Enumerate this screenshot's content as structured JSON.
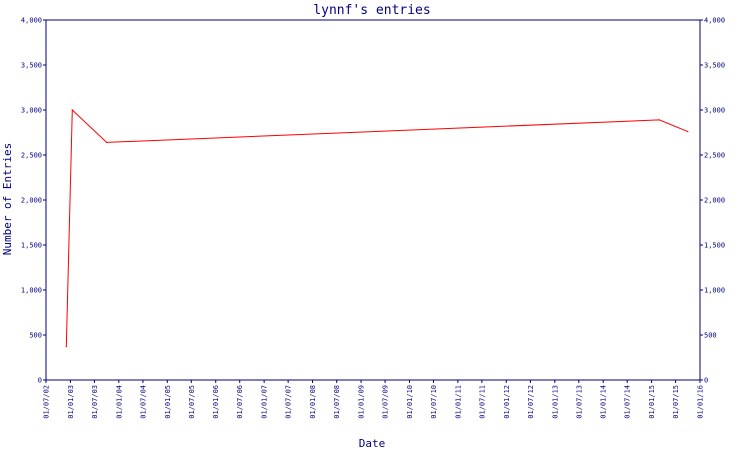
{
  "chart_data": {
    "type": "line",
    "title": "lynnf's entries",
    "xlabel": "Date",
    "ylabel": "Number of Entries",
    "ylim": [
      0,
      4000
    ],
    "y_ticks": [
      0,
      500,
      1000,
      1500,
      2000,
      2500,
      3000,
      3500,
      4000
    ],
    "y_tick_labels": [
      "0",
      "500",
      "1,000",
      "1,500",
      "2,000",
      "2,500",
      "3,000",
      "3,500",
      "4,000"
    ],
    "x_tick_labels": [
      "01/07/02",
      "01/01/03",
      "01/07/03",
      "01/01/04",
      "01/07/04",
      "01/01/05",
      "01/07/05",
      "01/01/06",
      "01/07/06",
      "01/01/07",
      "01/07/07",
      "01/01/08",
      "01/07/08",
      "01/01/09",
      "01/07/09",
      "01/01/10",
      "01/07/10",
      "01/01/11",
      "01/07/11",
      "01/01/12",
      "01/07/12",
      "01/01/13",
      "01/07/13",
      "01/01/14",
      "01/07/14",
      "01/01/15",
      "01/07/15",
      "01/01/16"
    ],
    "grid": false,
    "right_axis_mirrors_left": true,
    "series": [
      {
        "color": "#ff0000",
        "x": [
          "2002-12-01",
          "2003-01-15",
          "2003-10-01",
          "2015-03-01",
          "2015-10-01"
        ],
        "y": [
          370,
          3000,
          2640,
          2890,
          2760
        ]
      }
    ]
  },
  "colors": {
    "axis": "#000080",
    "line": "#ff0000",
    "background": "#ffffff"
  }
}
